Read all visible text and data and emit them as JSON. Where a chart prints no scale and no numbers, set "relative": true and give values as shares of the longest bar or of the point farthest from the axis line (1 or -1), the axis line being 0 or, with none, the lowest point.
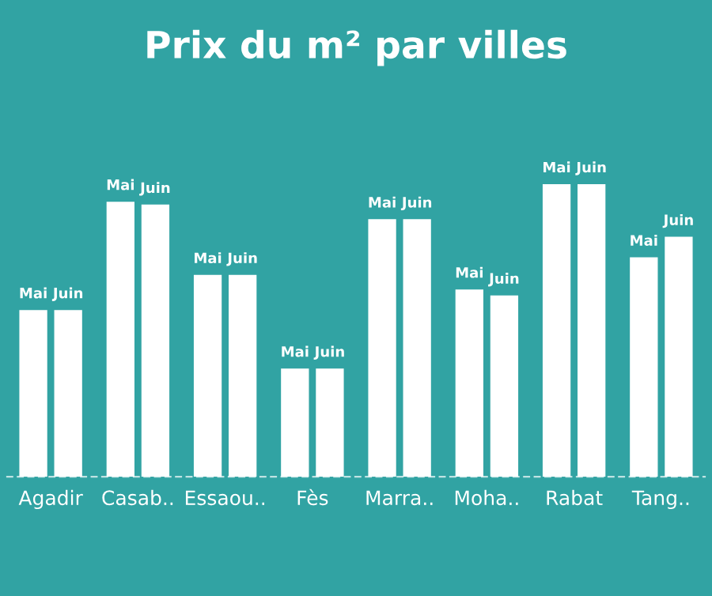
{
  "chart_data": {
    "type": "bar",
    "title": "Prix du m² par villes",
    "categories": [
      "Agadir",
      "Casab..",
      "Essaou..",
      "Fès",
      "Marra..",
      "Moha..",
      "Rabat",
      "Tang.."
    ],
    "relative": true,
    "series": [
      {
        "name": "Mai",
        "color": "#ffffff",
        "values": [
          0.57,
          0.94,
          0.69,
          0.37,
          0.88,
          0.64,
          1,
          0.75
        ]
      },
      {
        "name": "Juin",
        "color": "#ffffff",
        "values": [
          0.57,
          0.93,
          0.69,
          0.37,
          0.88,
          0.62,
          1,
          0.82
        ]
      }
    ],
    "legend": false,
    "grid": false
  }
}
